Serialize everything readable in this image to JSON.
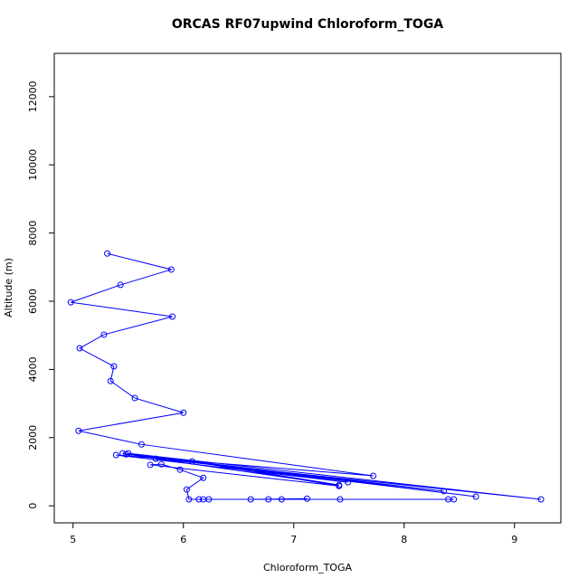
{
  "chart_data": {
    "type": "line",
    "title": "ORCAS RF07upwind Chloroform_TOGA",
    "x_label": "Chloroform_TOGA",
    "y_label": "Altitude (m)",
    "series": [
      {
        "color": "#0000ff",
        "x": [
          5.31,
          5.89,
          5.43,
          4.98,
          5.9,
          5.28,
          5.06,
          5.37,
          5.34,
          5.56,
          6.0,
          5.05,
          5.62,
          7.72,
          5.39,
          7.49,
          5.45,
          8.36,
          5.48,
          8.65,
          5.5,
          9.24,
          5.75,
          7.41,
          6.08,
          7.41,
          5.7,
          5.8,
          5.97,
          6.18,
          6.03,
          6.05,
          6.23,
          6.77,
          7.42,
          6.14,
          6.61,
          7.12,
          6.89,
          6.18,
          8.4,
          8.45
        ],
        "values": [
          7400,
          6930,
          6480,
          5970,
          5550,
          5020,
          4620,
          4090,
          3660,
          3160,
          2730,
          2200,
          1800,
          880,
          1490,
          690,
          1540,
          430,
          1510,
          270,
          1540,
          190,
          1380,
          610,
          1300,
          580,
          1200,
          1220,
          1060,
          820,
          480,
          190,
          190,
          190,
          190,
          190,
          190,
          210,
          190,
          190,
          190,
          190
        ]
      }
    ],
    "xlim": [
      4.83,
      9.42
    ],
    "ylim": [
      -500,
      13270
    ],
    "xticks": [
      5,
      6,
      7,
      8,
      9
    ],
    "yticks": [
      0,
      2000,
      4000,
      6000,
      8000,
      10000,
      12000
    ]
  }
}
